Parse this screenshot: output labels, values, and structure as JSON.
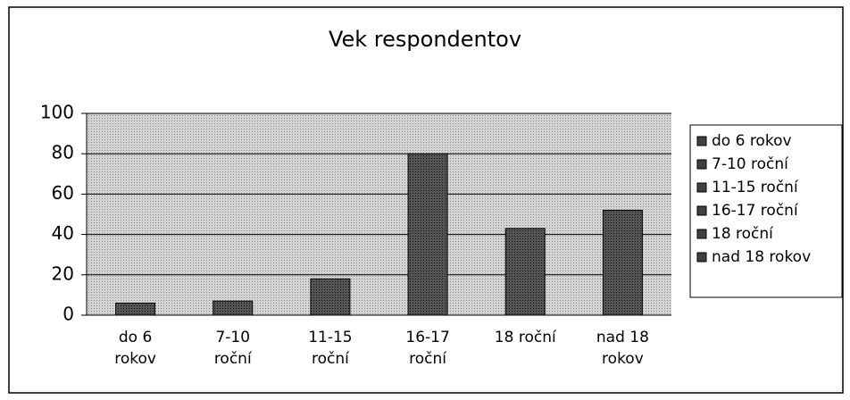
{
  "chart_data": {
    "type": "bar",
    "title": "Vek respondentov",
    "categories": [
      "do 6 rokov",
      "7-10 roční",
      "11-15 roční",
      "16-17 roční",
      "18 roční",
      "nad 18 rokov"
    ],
    "values": [
      6,
      7,
      18,
      80,
      43,
      52
    ],
    "colors": [
      "#404040",
      "#404040",
      "#404040",
      "#404040",
      "#404040",
      "#404040"
    ],
    "ylim": [
      0,
      100
    ],
    "yticks": [
      0,
      20,
      40,
      60,
      80,
      100
    ],
    "grid": true,
    "legend": "right"
  }
}
